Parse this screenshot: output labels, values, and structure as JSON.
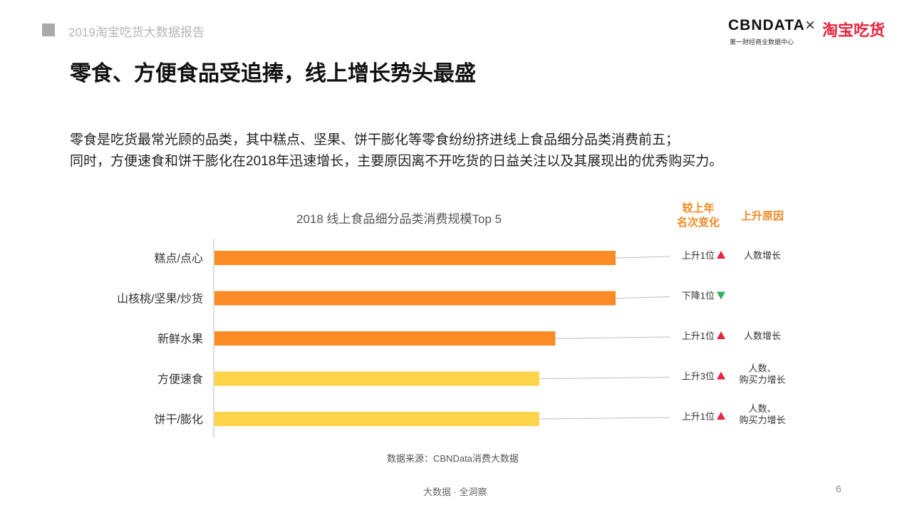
{
  "header": {
    "report_title": "2019淘宝吃货大数据报告"
  },
  "logo": {
    "cbn": "CBNDATA",
    "cbn_sub": "第一财经商业数据中心",
    "times": "×",
    "taobao": "淘宝吃货"
  },
  "main_title": "零食、方便食品受追捧，线上增长势头最盛",
  "description": [
    "零食是吃货最常光顾的品类，其中糕点、坚果、饼干膨化等零食纷纷挤进线上食品细分品类消费前五；",
    "同时，方便速食和饼干膨化在2018年迅速增长，主要原因离不开吃货的日益关注以及其展现出的优秀购买力。"
  ],
  "columns": {
    "rank_change": [
      "较上年",
      "名次变化"
    ],
    "reason": "上升原因"
  },
  "colors": {
    "orange": "#fb8b24",
    "yellow": "#fdd34a",
    "up": "#e8263e",
    "down": "#2fb35a",
    "accent": "#f08a24"
  },
  "chart_data": {
    "type": "bar",
    "orientation": "horizontal",
    "title": "2018 线上食品细分品类消费规模Top 5",
    "categories": [
      "糕点/点心",
      "山核桃/坚果/炒货",
      "新鲜水果",
      "方便速食",
      "饼干/膨化"
    ],
    "values": [
      100,
      100,
      85,
      81,
      81
    ],
    "xlim": [
      0,
      100
    ],
    "bar_colors": [
      "#fb8b24",
      "#fb8b24",
      "#fb8b24",
      "#fdd34a",
      "#fdd34a"
    ],
    "rank_change": [
      {
        "text": "上升1位",
        "direction": "up"
      },
      {
        "text": "下降1位",
        "direction": "down"
      },
      {
        "text": "上升1位",
        "direction": "up"
      },
      {
        "text": "上升3位",
        "direction": "up"
      },
      {
        "text": "上升1位",
        "direction": "up"
      }
    ],
    "reasons": [
      [
        "人数增长"
      ],
      [],
      [
        "人数增长"
      ],
      [
        "人数、",
        "购买力增长"
      ],
      [
        "人数、",
        "购买力增长"
      ]
    ]
  },
  "source": "数据来源：CBNData消费大数据",
  "footer": "大数据 · 全洞察",
  "page_number": "6"
}
